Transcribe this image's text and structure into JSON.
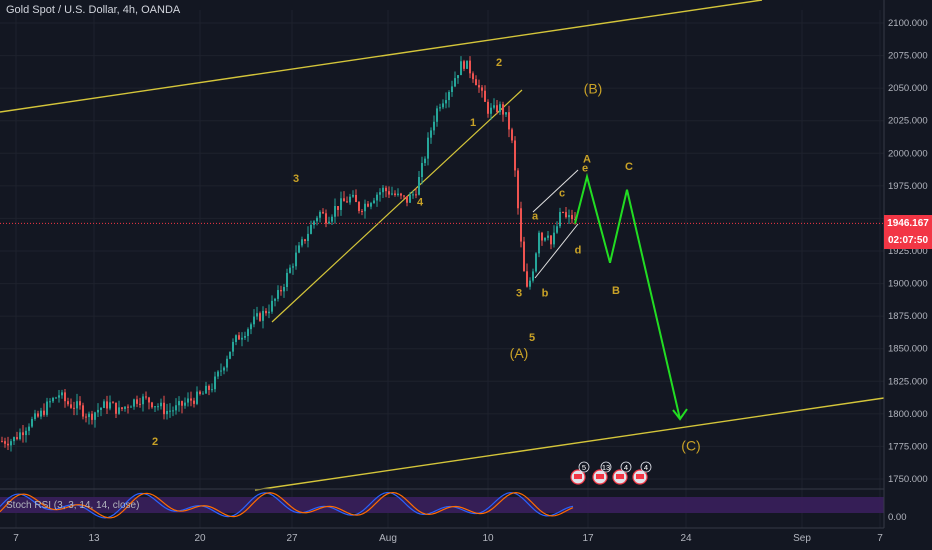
{
  "header": {
    "title": "Gold Spot / U.S. Dollar, 4h, OANDA"
  },
  "oscillator": {
    "label": "Stoch RSI (3, 3, 14, 14, close)",
    "tick": "0.00"
  },
  "price_tags": {
    "last": "1946.167",
    "countdown": "02:07:50",
    "last_color": "#f23645",
    "countdown_color": "#f23645"
  },
  "chart_data": {
    "type": "candlestick",
    "title": "Gold Spot / U.S. Dollar, 4h, OANDA",
    "ylim": [
      1740,
      2110
    ],
    "y_ticks": [
      "2100.000",
      "2075.000",
      "2050.000",
      "2025.000",
      "2000.000",
      "1975.000",
      "1950.000",
      "1925.000",
      "1900.000",
      "1875.000",
      "1850.000",
      "1825.000",
      "1800.000",
      "1775.000",
      "1750.000"
    ],
    "x_ticks": [
      "7",
      "13",
      "20",
      "27",
      "Aug",
      "10",
      "17",
      "24",
      "Sep",
      "7"
    ],
    "last_price": 1946.167,
    "price_path": [
      [
        0,
        1779
      ],
      [
        12,
        1780
      ],
      [
        20,
        1786
      ],
      [
        28,
        1793
      ],
      [
        38,
        1798
      ],
      [
        48,
        1808
      ],
      [
        58,
        1815
      ],
      [
        66,
        1808
      ],
      [
        78,
        1805
      ],
      [
        88,
        1798
      ],
      [
        98,
        1804
      ],
      [
        108,
        1808
      ],
      [
        118,
        1802
      ],
      [
        128,
        1808
      ],
      [
        138,
        1812
      ],
      [
        148,
        1810
      ],
      [
        158,
        1806
      ],
      [
        165,
        1802
      ],
      [
        175,
        1804
      ],
      [
        188,
        1810
      ],
      [
        200,
        1814
      ],
      [
        212,
        1822
      ],
      [
        220,
        1834
      ],
      [
        228,
        1848
      ],
      [
        236,
        1858
      ],
      [
        244,
        1864
      ],
      [
        254,
        1872
      ],
      [
        262,
        1877
      ],
      [
        270,
        1883
      ],
      [
        278,
        1892
      ],
      [
        286,
        1906
      ],
      [
        294,
        1920
      ],
      [
        302,
        1932
      ],
      [
        310,
        1944
      ],
      [
        318,
        1955
      ],
      [
        326,
        1950
      ],
      [
        334,
        1958
      ],
      [
        342,
        1962
      ],
      [
        350,
        1966
      ],
      [
        358,
        1958
      ],
      [
        366,
        1962
      ],
      [
        374,
        1968
      ],
      [
        382,
        1972
      ],
      [
        390,
        1970
      ],
      [
        398,
        1966
      ],
      [
        406,
        1964
      ],
      [
        414,
        1970
      ],
      [
        420,
        1985
      ],
      [
        426,
        2005
      ],
      [
        432,
        2025
      ],
      [
        438,
        2038
      ],
      [
        444,
        2044
      ],
      [
        450,
        2052
      ],
      [
        456,
        2062
      ],
      [
        462,
        2070
      ],
      [
        468,
        2065
      ],
      [
        474,
        2058
      ],
      [
        480,
        2046
      ],
      [
        486,
        2034
      ],
      [
        492,
        2032
      ],
      [
        498,
        2036
      ],
      [
        504,
        2030
      ],
      [
        510,
        2015
      ],
      [
        514,
        1985
      ],
      [
        518,
        1948
      ],
      [
        522,
        1912
      ],
      [
        526,
        1895
      ],
      [
        530,
        1905
      ],
      [
        534,
        1920
      ],
      [
        538,
        1942
      ],
      [
        542,
        1932
      ],
      [
        546,
        1944
      ],
      [
        550,
        1930
      ],
      [
        554,
        1938
      ],
      [
        558,
        1950
      ],
      [
        562,
        1955
      ],
      [
        566,
        1948
      ],
      [
        570,
        1952
      ],
      [
        575,
        1946
      ]
    ],
    "wave_labels": [
      {
        "text": "2",
        "price": 1776
      },
      {
        "text": "3",
        "price": 1978
      },
      {
        "text": "4",
        "price": 1960
      },
      {
        "text": "1",
        "price": 2021
      },
      {
        "text": "2",
        "price": 2067
      },
      {
        "text": "3",
        "price": 1890
      },
      {
        "text": "5",
        "price": 1856
      },
      {
        "text": "(A)",
        "price": 1843
      },
      {
        "text": "a",
        "price": 1949
      },
      {
        "text": "b",
        "price": 1890
      },
      {
        "text": "c",
        "price": 1967
      },
      {
        "text": "d",
        "price": 1923
      },
      {
        "text": "e",
        "price": 1986
      },
      {
        "text": "A",
        "price": 1993
      },
      {
        "text": "(B)",
        "price": 2046
      },
      {
        "text": "C",
        "price": 1987
      },
      {
        "text": "B",
        "price": 1892
      },
      {
        "text": "(C)",
        "price": 1772
      }
    ],
    "projection": [
      [
        1946,
        0
      ],
      [
        1982,
        1
      ],
      [
        1916,
        2
      ],
      [
        1972,
        3
      ],
      [
        1796,
        4
      ]
    ],
    "oscillator": {
      "name": "Stoch RSI (3, 3, 14, 14, close)",
      "ylim": [
        0,
        100
      ]
    },
    "event_badges": [
      "5",
      "13",
      "4",
      "4"
    ],
    "colors": {
      "up": "#26a69a",
      "down": "#ef5350",
      "trend": "#d4c53a",
      "projection": "#22dd22",
      "label": "#c9a227",
      "oscillator_band": "#3a1f5c"
    }
  }
}
